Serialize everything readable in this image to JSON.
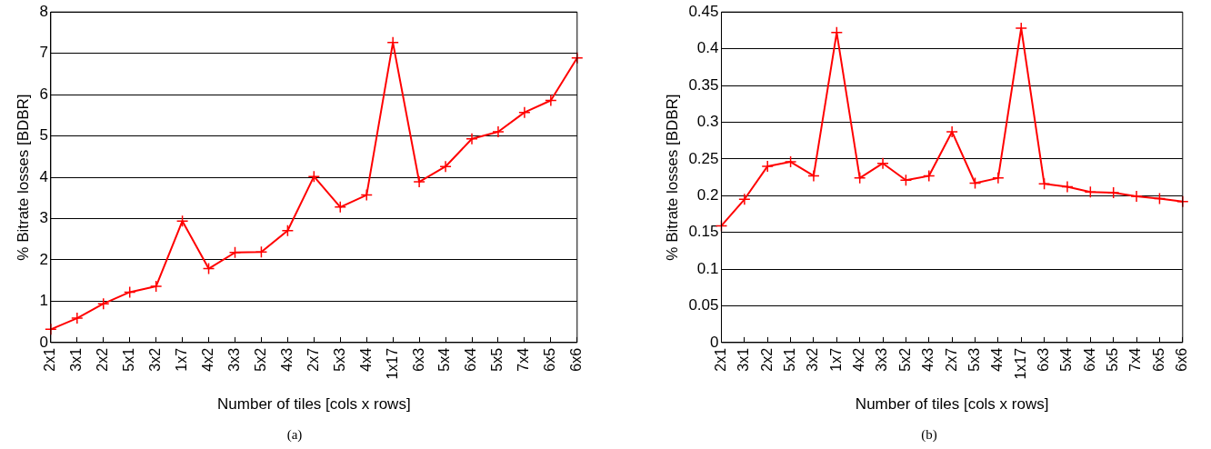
{
  "chart_data": [
    {
      "type": "line",
      "title": "(a)",
      "xlabel": "Number of tiles [cols x rows]",
      "ylabel": "% Bitrate losses [BDBR]",
      "categories": [
        "2x1",
        "3x1",
        "2x2",
        "5x1",
        "3x2",
        "1x7",
        "4x2",
        "3x3",
        "5x2",
        "4x3",
        "2x7",
        "5x3",
        "4x4",
        "1x17",
        "6x3",
        "5x4",
        "6x4",
        "5x5",
        "7x4",
        "6x5",
        "6x6"
      ],
      "series": [
        {
          "color": "#ff0000",
          "values": [
            0.32,
            0.59,
            0.94,
            1.22,
            1.36,
            2.94,
            1.79,
            2.18,
            2.19,
            2.71,
            4.02,
            3.28,
            3.57,
            7.26,
            3.89,
            4.26,
            4.93,
            5.1,
            5.57,
            5.86,
            6.89
          ]
        }
      ],
      "ylim": [
        0,
        8
      ],
      "yticks": [
        0,
        1,
        2,
        3,
        4,
        5,
        6,
        7,
        8
      ],
      "grid": "y",
      "legend": false,
      "marker": "cross",
      "line_style": "solid"
    },
    {
      "type": "line",
      "title": "(b)",
      "xlabel": "Number of tiles [cols x rows]",
      "ylabel": "% Bitrate losses [BDBR]",
      "categories": [
        "2x1",
        "3x1",
        "2x2",
        "5x1",
        "3x2",
        "1x7",
        "4x2",
        "3x3",
        "5x2",
        "4x3",
        "2x7",
        "5x3",
        "4x4",
        "1x17",
        "6x3",
        "5x4",
        "6x4",
        "5x5",
        "7x4",
        "6x5",
        "6x6"
      ],
      "series": [
        {
          "color": "#ff0000",
          "values": [
            0.159,
            0.195,
            0.24,
            0.246,
            0.227,
            0.422,
            0.224,
            0.244,
            0.221,
            0.227,
            0.287,
            0.217,
            0.224,
            0.428,
            0.216,
            0.212,
            0.205,
            0.204,
            0.199,
            0.196,
            0.192
          ]
        }
      ],
      "ylim": [
        0,
        0.45
      ],
      "yticks": [
        0,
        0.05,
        0.1,
        0.15,
        0.2,
        0.25,
        0.3,
        0.35,
        0.4,
        0.45
      ],
      "grid": "y",
      "legend": false,
      "marker": "cross",
      "line_style": "solid"
    }
  ]
}
